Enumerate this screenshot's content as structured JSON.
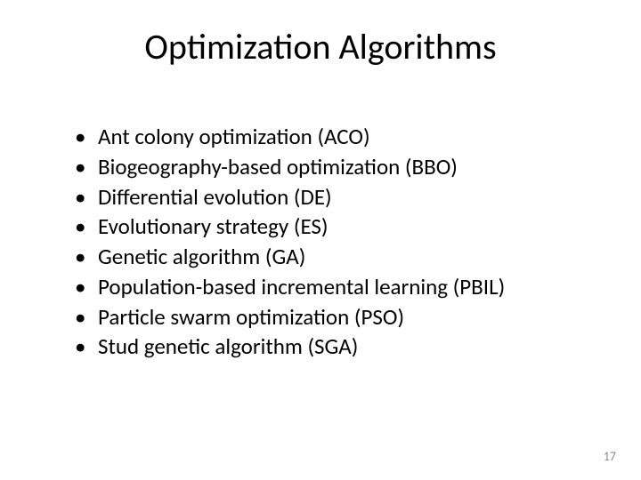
{
  "slide": {
    "title": "Optimization Algorithms",
    "bullets": [
      "Ant colony optimization (ACO)",
      "Biogeography-based optimization (BBO)",
      "Differential evolution (DE)",
      "Evolutionary strategy (ES)",
      "Genetic algorithm (GA)",
      "Population-based incremental learning (PBIL)",
      "Particle swarm optimization (PSO)",
      "Stud genetic algorithm (SGA)"
    ],
    "page_number": "17",
    "background_color": "#ffffff",
    "text_color": "#000000",
    "page_number_color": "#8a8a8a",
    "title_fontsize": 40,
    "bullet_fontsize": 25
  }
}
